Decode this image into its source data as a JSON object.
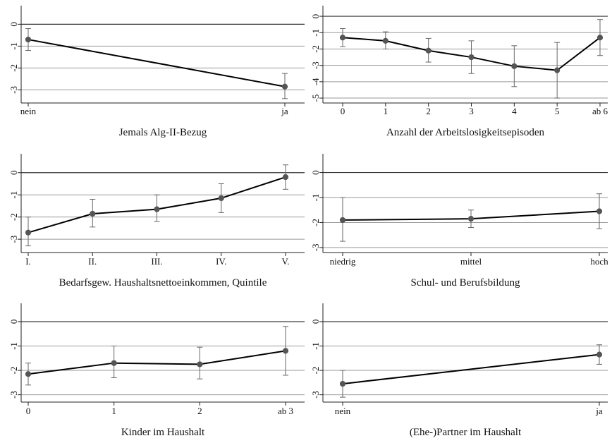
{
  "chart_data": [
    {
      "type": "line",
      "xlabel": "Jemals Alg-II-Bezug",
      "categories": [
        "nein",
        "ja"
      ],
      "values": [
        -0.7,
        -2.85
      ],
      "ci_low": [
        -1.2,
        -3.4
      ],
      "ci_high": [
        -0.2,
        -2.25
      ],
      "yticks": [
        "0",
        "-1",
        "-2",
        "-3"
      ],
      "ytick_values": [
        0,
        -1,
        -2,
        -3
      ],
      "ylim": [
        -3.6,
        0.85
      ],
      "grid": "horizontal at y ticks",
      "line_color": "#000000",
      "marker_color": "#555555"
    },
    {
      "type": "line",
      "xlabel": "Anzahl der Arbeitslosigkeitsepisoden",
      "categories": [
        "0",
        "1",
        "2",
        "3",
        "4",
        "5",
        "ab 6"
      ],
      "values": [
        -1.3,
        -1.5,
        -2.1,
        -2.5,
        -3.05,
        -3.3,
        -1.3
      ],
      "ci_low": [
        -1.85,
        -2.0,
        -2.8,
        -3.5,
        -4.3,
        -5.0,
        -2.4
      ],
      "ci_high": [
        -0.75,
        -0.95,
        -1.35,
        -1.5,
        -1.8,
        -1.6,
        -0.2
      ],
      "yticks": [
        "0",
        "-1",
        "-2",
        "-3",
        "-4",
        "-5"
      ],
      "ytick_values": [
        0,
        -1,
        -2,
        -3,
        -4,
        -5
      ],
      "ylim": [
        -5.3,
        0.65
      ],
      "grid": "horizontal at y ticks",
      "line_color": "#000000",
      "marker_color": "#555555"
    },
    {
      "type": "line",
      "xlabel": "Bedarfsgew. Haushaltsnettoeinkommen, Quintile",
      "categories": [
        "I.",
        "II.",
        "III.",
        "IV.",
        "V."
      ],
      "values": [
        -2.7,
        -1.85,
        -1.65,
        -1.15,
        -0.2
      ],
      "ci_low": [
        -3.3,
        -2.45,
        -2.2,
        -1.8,
        -0.75
      ],
      "ci_high": [
        -2.0,
        -1.2,
        -1.0,
        -0.5,
        0.35
      ],
      "yticks": [
        "0",
        "-1",
        "-2",
        "-3"
      ],
      "ytick_values": [
        0,
        -1,
        -2,
        -3
      ],
      "ylim": [
        -3.6,
        0.85
      ],
      "grid": "horizontal at y ticks",
      "line_color": "#000000",
      "marker_color": "#555555"
    },
    {
      "type": "line",
      "xlabel": "Schul- und Berufsbildung",
      "categories": [
        "niedrig",
        "mittel",
        "hoch"
      ],
      "values": [
        -1.9,
        -1.85,
        -1.55
      ],
      "ci_low": [
        -2.75,
        -2.2,
        -2.25
      ],
      "ci_high": [
        -1.0,
        -1.5,
        -0.85
      ],
      "yticks": [
        "0",
        "-1",
        "-2",
        "-3"
      ],
      "ytick_values": [
        0,
        -1,
        -2,
        -3
      ],
      "ylim": [
        -3.2,
        0.75
      ],
      "grid": "horizontal at y ticks",
      "line_color": "#000000",
      "marker_color": "#555555"
    },
    {
      "type": "line",
      "xlabel": "Kinder im Haushalt",
      "categories": [
        "0",
        "1",
        "2",
        "ab 3"
      ],
      "values": [
        -2.15,
        -1.7,
        -1.75,
        -1.2
      ],
      "ci_low": [
        -2.6,
        -2.3,
        -2.35,
        -2.2
      ],
      "ci_high": [
        -1.7,
        -1.0,
        -1.05,
        -0.2
      ],
      "yticks": [
        "0",
        "-1",
        "-2",
        "-3"
      ],
      "ytick_values": [
        0,
        -1,
        -2,
        -3
      ],
      "ylim": [
        -3.3,
        0.75
      ],
      "grid": "horizontal at y ticks",
      "line_color": "#000000",
      "marker_color": "#555555"
    },
    {
      "type": "line",
      "xlabel": "(Ehe-)Partner im Haushalt",
      "categories": [
        "nein",
        "ja"
      ],
      "values": [
        -2.55,
        -1.35
      ],
      "ci_low": [
        -3.1,
        -1.75
      ],
      "ci_high": [
        -2.0,
        -0.95
      ],
      "yticks": [
        "0",
        "-1",
        "-2",
        "-3"
      ],
      "ytick_values": [
        0,
        -1,
        -2,
        -3
      ],
      "ylim": [
        -3.3,
        0.75
      ],
      "grid": "horizontal at y ticks",
      "line_color": "#000000",
      "marker_color": "#555555"
    }
  ]
}
